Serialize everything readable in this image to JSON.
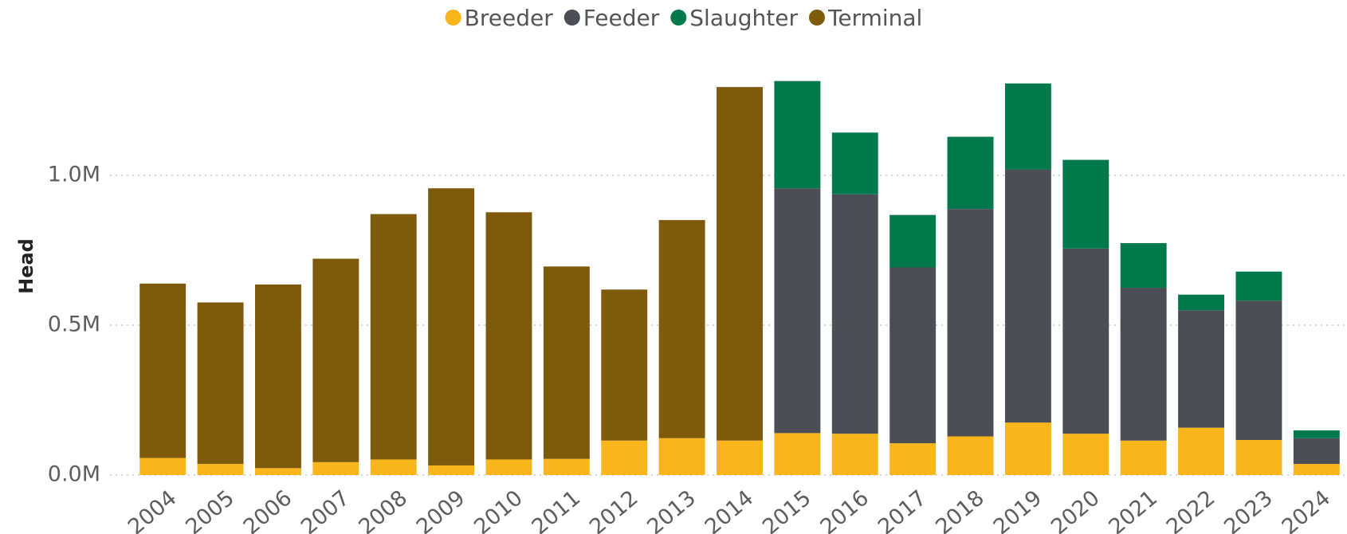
{
  "chart_data": {
    "type": "stacked_bar",
    "y_label": "Head",
    "categories": [
      "2004",
      "2005",
      "2006",
      "2007",
      "2008",
      "2009",
      "2010",
      "2011",
      "2012",
      "2013",
      "2014",
      "2015",
      "2016",
      "2017",
      "2018",
      "2019",
      "2020",
      "2021",
      "2022",
      "2023",
      "2024"
    ],
    "series": [
      {
        "name": "Breeder",
        "color": "#F9B51C",
        "values": [
          57000,
          37000,
          23000,
          43000,
          52000,
          32000,
          52000,
          54000,
          115000,
          123000,
          115000,
          140000,
          138000,
          106000,
          129000,
          175000,
          138000,
          115000,
          158000,
          117000,
          37000
        ]
      },
      {
        "name": "Feeder",
        "color": "#4B4E54",
        "values": [
          null,
          null,
          null,
          null,
          null,
          null,
          null,
          null,
          null,
          null,
          null,
          817000,
          799000,
          587000,
          759000,
          845000,
          618000,
          510000,
          392000,
          465000,
          86000
        ]
      },
      {
        "name": "Slaughter",
        "color": "#007A4D",
        "values": [
          null,
          null,
          null,
          null,
          null,
          null,
          null,
          null,
          null,
          null,
          null,
          358000,
          206000,
          175000,
          241000,
          287000,
          296000,
          149000,
          52000,
          97000,
          26000
        ]
      },
      {
        "name": "Terminal",
        "color": "#7D5A0C",
        "values": [
          582000,
          539000,
          613000,
          679000,
          819000,
          925000,
          825000,
          642000,
          504000,
          728000,
          1180000,
          null,
          null,
          null,
          null,
          null,
          null,
          null,
          null,
          null,
          null
        ]
      }
    ],
    "ylim": [
      0,
      1370000
    ],
    "yticks": [
      {
        "value": 0,
        "label": "0.0M"
      },
      {
        "value": 500000,
        "label": "0.5M"
      },
      {
        "value": 1000000,
        "label": "1.0M"
      }
    ],
    "grid": true,
    "legend": "top"
  }
}
